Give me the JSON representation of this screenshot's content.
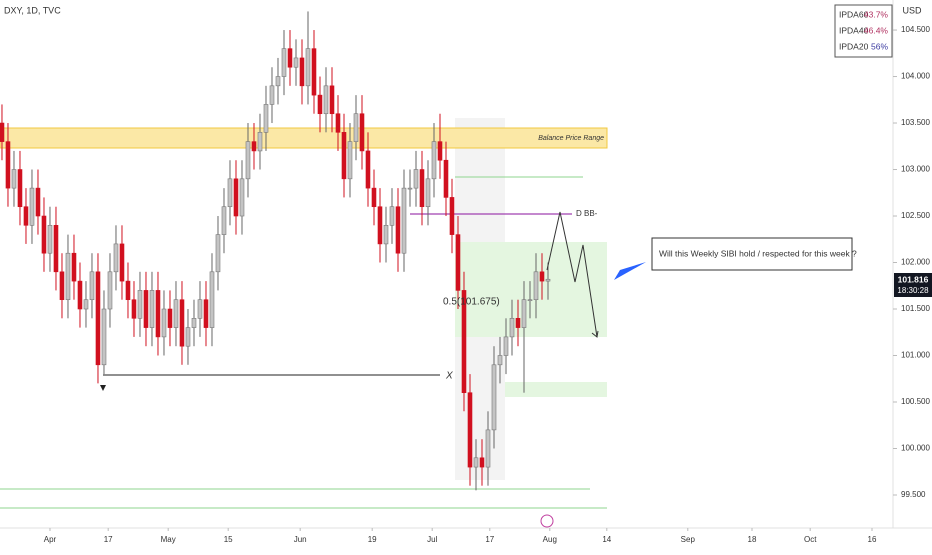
{
  "chart_data": {
    "type": "candlestick",
    "title": "DXY, 1D, TVC",
    "currency": "USD",
    "open": [
      103.5,
      103.3,
      102.8,
      103.0,
      102.6,
      102.4,
      102.8,
      102.5,
      102.1,
      102.4,
      101.9,
      101.6,
      102.1,
      101.8,
      101.5,
      101.6,
      101.9,
      100.9,
      101.5,
      101.9,
      102.2,
      101.8,
      101.6,
      101.4,
      101.7,
      101.3,
      101.7,
      101.2,
      101.5,
      101.3,
      101.6,
      101.1,
      101.3,
      101.4,
      101.6,
      101.3,
      101.9,
      102.3,
      102.6,
      102.9,
      102.5,
      102.9,
      103.3,
      103.2,
      103.4,
      103.7,
      103.9,
      104.0,
      104.3,
      104.1,
      104.2,
      103.9,
      104.3,
      103.8,
      103.6,
      103.9,
      103.6,
      103.4,
      102.9,
      103.3,
      103.6,
      103.2,
      102.8,
      102.6,
      102.2,
      102.4,
      102.6,
      102.1,
      102.8,
      102.8,
      103.0,
      102.6,
      102.9,
      103.3,
      103.1,
      102.7,
      102.3,
      101.7,
      100.6,
      99.8,
      99.9,
      99.8,
      100.2,
      100.9,
      101.0,
      101.2,
      101.4,
      101.3,
      101.6,
      101.6,
      101.9,
      101.8
    ],
    "high": [
      103.7,
      103.5,
      103.2,
      103.2,
      102.8,
      103.0,
      103.0,
      102.7,
      102.6,
      102.6,
      102.1,
      102.3,
      102.3,
      102.0,
      101.8,
      102.1,
      102.1,
      101.7,
      102.1,
      102.4,
      102.4,
      102.0,
      101.8,
      101.9,
      101.9,
      101.9,
      101.9,
      101.7,
      101.7,
      101.8,
      101.8,
      101.5,
      101.6,
      101.8,
      101.8,
      102.1,
      102.5,
      102.8,
      103.1,
      103.1,
      103.1,
      103.5,
      103.5,
      103.6,
      103.9,
      104.1,
      104.2,
      104.5,
      104.5,
      104.4,
      104.4,
      104.7,
      104.5,
      104.0,
      104.1,
      104.1,
      103.8,
      103.6,
      103.5,
      103.8,
      103.8,
      103.4,
      103.0,
      102.8,
      102.6,
      102.8,
      102.8,
      103.0,
      103.0,
      103.2,
      103.2,
      103.1,
      103.5,
      103.6,
      103.3,
      102.9,
      102.5,
      101.9,
      100.8,
      100.1,
      100.1,
      100.4,
      101.1,
      101.2,
      101.4,
      101.6,
      101.6,
      101.8,
      101.8,
      102.1,
      102.1,
      102.0
    ],
    "low": [
      103.1,
      102.6,
      102.6,
      102.4,
      102.2,
      102.2,
      102.3,
      101.9,
      101.9,
      101.7,
      101.4,
      101.4,
      101.6,
      101.3,
      101.3,
      101.4,
      100.7,
      100.8,
      101.3,
      101.7,
      101.6,
      101.4,
      101.2,
      101.2,
      101.1,
      101.1,
      101.0,
      101.0,
      101.1,
      101.1,
      100.9,
      100.9,
      101.1,
      101.2,
      101.1,
      101.1,
      101.7,
      102.1,
      102.4,
      102.3,
      102.3,
      102.7,
      103.0,
      103.0,
      103.2,
      103.5,
      103.7,
      103.8,
      103.9,
      103.9,
      103.7,
      103.7,
      103.6,
      103.4,
      103.4,
      103.4,
      103.2,
      102.7,
      102.7,
      103.1,
      103.0,
      102.6,
      102.4,
      102.0,
      102.0,
      102.2,
      101.9,
      101.9,
      102.6,
      102.6,
      102.4,
      102.4,
      102.7,
      102.9,
      102.5,
      102.1,
      101.5,
      100.4,
      99.6,
      99.55,
      99.6,
      99.6,
      100.0,
      100.7,
      100.8,
      101.0,
      101.1,
      100.6,
      101.4,
      101.4,
      101.6,
      101.6
    ],
    "close": [
      103.3,
      102.8,
      103.0,
      102.6,
      102.4,
      102.8,
      102.5,
      102.1,
      102.4,
      101.9,
      101.6,
      102.1,
      101.8,
      101.5,
      101.6,
      101.9,
      100.9,
      101.5,
      101.9,
      102.2,
      101.8,
      101.6,
      101.4,
      101.7,
      101.3,
      101.7,
      101.2,
      101.5,
      101.3,
      101.6,
      101.1,
      101.3,
      101.4,
      101.6,
      101.3,
      101.9,
      102.3,
      102.6,
      102.9,
      102.5,
      102.9,
      103.3,
      103.2,
      103.4,
      103.7,
      103.9,
      104.0,
      104.3,
      104.1,
      104.2,
      103.9,
      104.3,
      103.8,
      103.6,
      103.9,
      103.6,
      103.4,
      102.9,
      103.3,
      103.6,
      103.2,
      102.8,
      102.6,
      102.2,
      102.4,
      102.6,
      102.1,
      102.8,
      102.8,
      103.0,
      102.6,
      102.9,
      103.3,
      103.1,
      102.7,
      102.3,
      101.7,
      100.6,
      99.8,
      99.9,
      99.8,
      100.2,
      100.9,
      101.0,
      101.2,
      101.4,
      101.3,
      101.6,
      101.6,
      101.9,
      101.8,
      101.82
    ],
    "up_color": "#c4c4c4",
    "down_color": "#d1101f",
    "xlim": [
      -0.33,
      148.5
    ],
    "xticks": [
      {
        "value": 8,
        "label": "Apr"
      },
      {
        "value": 17.7,
        "label": "17"
      },
      {
        "value": 27.7,
        "label": "May"
      },
      {
        "value": 37.7,
        "label": "15"
      },
      {
        "value": 49.7,
        "label": "Jun"
      },
      {
        "value": 61.7,
        "label": "19"
      },
      {
        "value": 71.7,
        "label": "Jul"
      },
      {
        "value": 81.3,
        "label": "17"
      },
      {
        "value": 91.3,
        "label": "Aug"
      },
      {
        "value": 100.8,
        "label": "14"
      },
      {
        "value": 114.3,
        "label": "Sep"
      },
      {
        "value": 125,
        "label": "18"
      },
      {
        "value": 134.7,
        "label": "Oct"
      },
      {
        "value": 145,
        "label": "16"
      }
    ],
    "ylim": [
      99.145,
      104.823
    ],
    "yticks": [
      {
        "value": 99.5,
        "label": "99.500"
      },
      {
        "value": 100,
        "label": "100.000"
      },
      {
        "value": 100.5,
        "label": "100.500"
      },
      {
        "value": 101,
        "label": "101.000"
      },
      {
        "value": 101.5,
        "label": "101.500"
      },
      {
        "value": 102,
        "label": "102.000"
      },
      {
        "value": 102.5,
        "label": "102.500"
      },
      {
        "value": 103,
        "label": "103.000"
      },
      {
        "value": 103.5,
        "label": "103.500"
      },
      {
        "value": 104,
        "label": "104.000"
      },
      {
        "value": 104.5,
        "label": "104.500"
      }
    ],
    "last_price_label": "101.816",
    "countdown": "18:30:28",
    "ipda": [
      {
        "name": "IPDA60",
        "label": "43.7%",
        "color": "#b03060"
      },
      {
        "name": "IPDA40",
        "label": "46.4%",
        "color": "#b03060"
      },
      {
        "name": "IPDA20",
        "label": "56%",
        "color": "#3a3aa0"
      }
    ],
    "annotations": {
      "balance": "Balance Price Range",
      "dbb": "D BB-",
      "fib": "0.5(101.675)",
      "x_mark": "X",
      "callout": "Will this Weekly SIBI hold / respected for this week ?"
    }
  }
}
